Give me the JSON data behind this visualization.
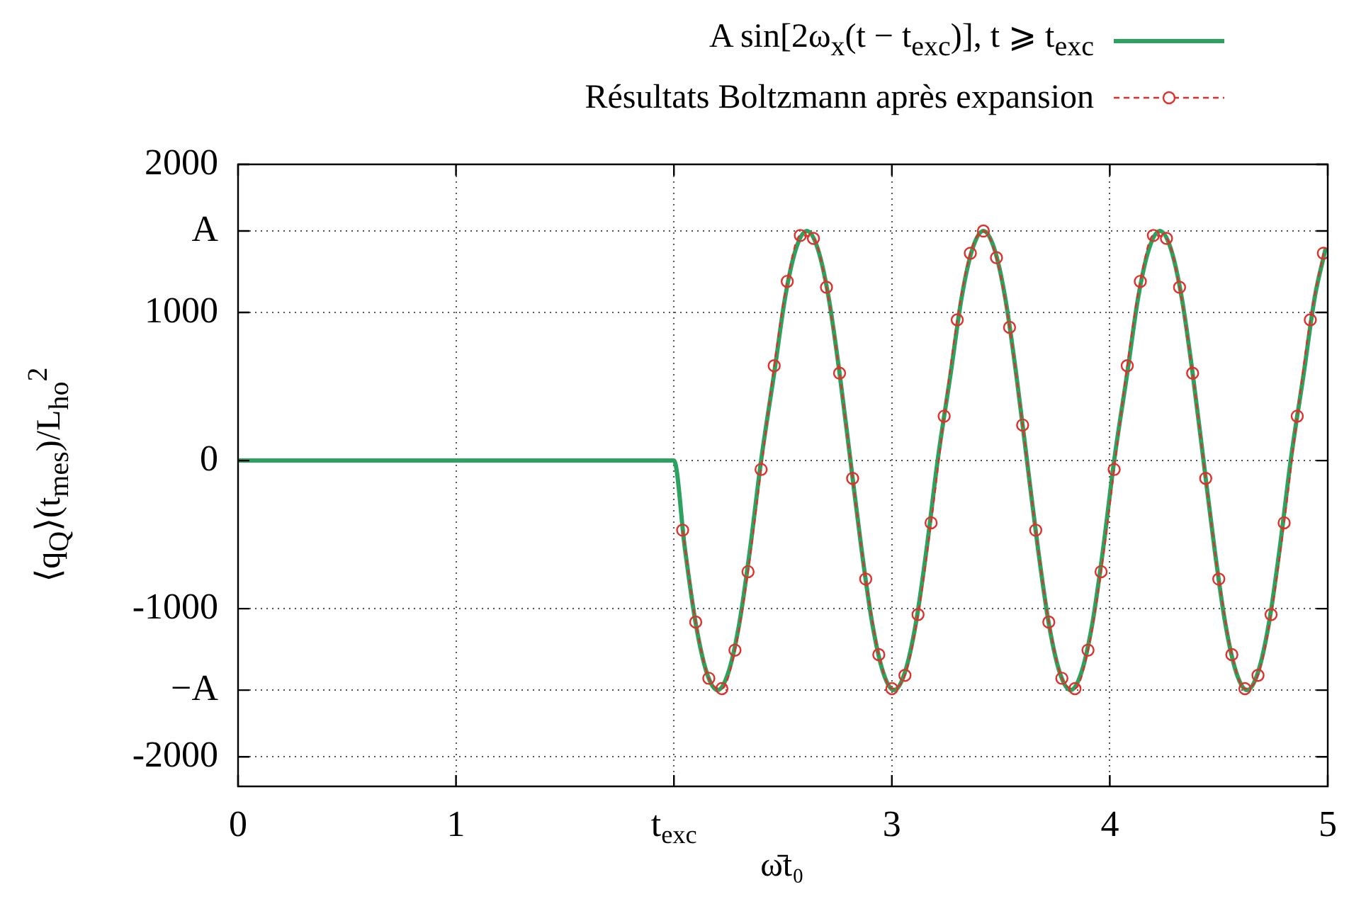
{
  "chart_data": {
    "type": "line",
    "xlabel": "ω̄t₀",
    "ylabel": "⟨q$_{Q}$⟩(t$_{mes}$)/L$_{ho}$$^{2}$",
    "xlim": [
      0,
      5
    ],
    "xticks": [
      0,
      1,
      {
        "value": 2,
        "label": "t$_{exc}$"
      },
      3,
      4,
      5
    ],
    "ylim": [
      -2200,
      2000
    ],
    "yticks": [
      -2000,
      {
        "value": -1550,
        "label": "−A"
      },
      -1000,
      0,
      1000,
      {
        "value": 1550,
        "label": "A"
      },
      2000
    ],
    "grid": true,
    "legend": "top right",
    "series": [
      {
        "name": "A sin[2ω$_{x}$(t − t$_{exc}$)], t ⩾ t$_{exc}$",
        "type": "line",
        "color": "#2ca25f",
        "line_style": "solid",
        "marker": "none",
        "x": [
          0,
          2.0,
          2.05,
          2.1,
          2.15,
          2.2,
          2.25,
          2.3,
          2.35,
          2.4,
          2.46,
          2.51,
          2.56,
          2.61,
          2.66,
          2.71,
          2.76,
          2.81,
          2.86,
          2.91,
          2.96,
          3.01,
          3.06,
          3.11,
          3.16,
          3.21,
          3.27,
          3.32,
          3.37,
          3.42,
          3.47,
          3.52,
          3.57,
          3.62,
          3.67,
          3.72,
          3.77,
          3.82,
          3.87,
          3.92,
          3.97,
          4.02,
          4.08,
          4.13,
          4.18,
          4.23,
          4.28,
          4.33,
          4.38,
          4.43,
          4.48,
          4.53,
          4.58,
          4.63,
          4.68,
          4.73,
          4.78,
          4.83,
          4.89,
          4.94,
          4.99
        ],
        "values": [
          0,
          0,
          -590,
          -1100,
          -1430,
          -1550,
          -1430,
          -1100,
          -590,
          0,
          590,
          1100,
          1430,
          1550,
          1430,
          1100,
          590,
          0,
          -590,
          -1100,
          -1430,
          -1550,
          -1430,
          -1100,
          -590,
          0,
          590,
          1100,
          1430,
          1550,
          1430,
          1100,
          590,
          0,
          -590,
          -1100,
          -1430,
          -1550,
          -1430,
          -1100,
          -590,
          0,
          590,
          1100,
          1430,
          1550,
          1430,
          1100,
          590,
          0,
          -590,
          -1100,
          -1430,
          -1550,
          -1430,
          -1100,
          -590,
          0,
          590,
          1100,
          1430
        ]
      },
      {
        "name": "Résultats Boltzmann après expansion",
        "type": "line",
        "color": "#e0302a",
        "line_style": "dashed",
        "marker": "circle",
        "x": [
          2.04,
          2.1,
          2.16,
          2.22,
          2.28,
          2.34,
          2.4,
          2.46,
          2.52,
          2.58,
          2.64,
          2.7,
          2.76,
          2.82,
          2.88,
          2.94,
          3.0,
          3.06,
          3.12,
          3.18,
          3.24,
          3.3,
          3.36,
          3.42,
          3.48,
          3.54,
          3.6,
          3.66,
          3.72,
          3.78,
          3.84,
          3.9,
          3.96,
          4.02,
          4.08,
          4.14,
          4.2,
          4.26,
          4.32,
          4.38,
          4.44,
          4.5,
          4.56,
          4.62,
          4.68,
          4.74,
          4.8,
          4.86,
          4.92,
          4.98
        ],
        "values": [
          -470,
          -1090,
          -1470,
          -1540,
          -1280,
          -750,
          -60,
          640,
          1210,
          1520,
          1500,
          1170,
          590,
          -120,
          -800,
          -1310,
          -1540,
          -1450,
          -1040,
          -420,
          300,
          950,
          1400,
          1550,
          1370,
          900,
          240,
          -470,
          -1090,
          -1470,
          -1540,
          -1280,
          -750,
          -60,
          640,
          1210,
          1520,
          1500,
          1170,
          590,
          -120,
          -800,
          -1310,
          -1540,
          -1450,
          -1040,
          -420,
          300,
          950,
          1400
        ]
      }
    ]
  }
}
